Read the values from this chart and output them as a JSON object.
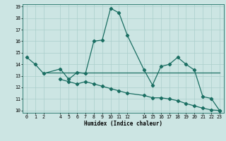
{
  "xlabel": "Humidex (Indice chaleur)",
  "bg_color": "#cce5e3",
  "grid_color": "#aacfcc",
  "line_color": "#1a6e62",
  "xlim": [
    -0.5,
    23.5
  ],
  "ylim": [
    9.8,
    19.2
  ],
  "yticks": [
    10,
    11,
    12,
    13,
    14,
    15,
    16,
    17,
    18,
    19
  ],
  "xticks": [
    0,
    1,
    2,
    4,
    5,
    6,
    7,
    8,
    9,
    10,
    11,
    12,
    14,
    15,
    16,
    17,
    18,
    19,
    20,
    21,
    22,
    23
  ],
  "series1_x": [
    0,
    1,
    2,
    4,
    5,
    6,
    7,
    8,
    9,
    10,
    11,
    12,
    14,
    15,
    16,
    17,
    18,
    19,
    20,
    21,
    22,
    23
  ],
  "series1_y": [
    14.6,
    14.0,
    13.2,
    13.6,
    12.7,
    13.3,
    13.2,
    16.0,
    16.1,
    18.85,
    18.45,
    16.5,
    13.5,
    12.2,
    13.8,
    14.0,
    14.6,
    14.0,
    13.5,
    11.2,
    11.05,
    10.0
  ],
  "series2_x": [
    2,
    23
  ],
  "series2_y": [
    13.3,
    13.3
  ],
  "series3_x": [
    4,
    5,
    6,
    7,
    8,
    9,
    10,
    11,
    12,
    14,
    15,
    16,
    17,
    18,
    19,
    20,
    21,
    22,
    23
  ],
  "series3_y": [
    12.7,
    12.5,
    12.3,
    12.5,
    12.3,
    12.1,
    11.9,
    11.7,
    11.5,
    11.3,
    11.1,
    11.1,
    11.0,
    10.85,
    10.6,
    10.4,
    10.2,
    10.05,
    10.0
  ]
}
